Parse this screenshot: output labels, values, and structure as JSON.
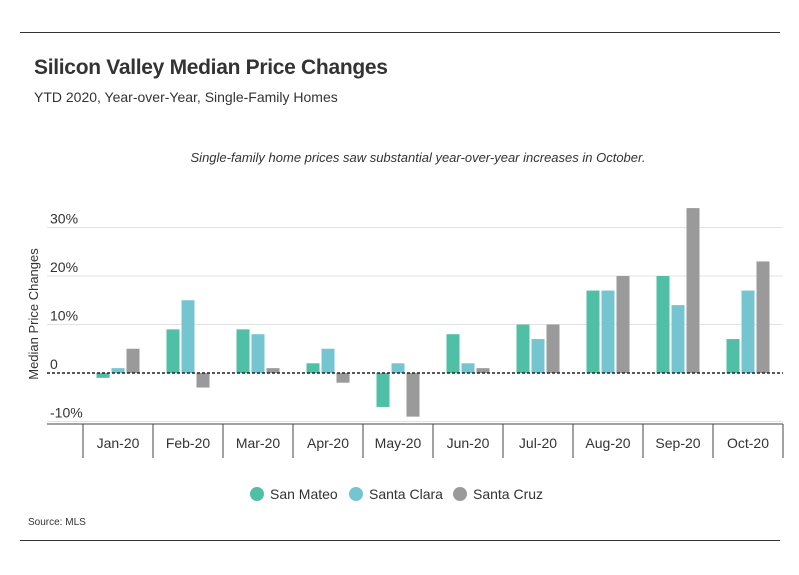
{
  "header": {
    "title": "Silicon Valley Median Price Changes",
    "subtitle": "YTD 2020, Year-over-Year, Single-Family Homes"
  },
  "footer": {
    "source": "Source:  MLS"
  },
  "chart_data": {
    "type": "bar",
    "annotation": "Single-family home prices saw substantial year-over-year increases in October.",
    "ylabel": "Median Price Changes",
    "xlabel": "",
    "ylim": [
      -10,
      34
    ],
    "y_ticks": [
      {
        "value": 30,
        "label": "30%"
      },
      {
        "value": 20,
        "label": "20%"
      },
      {
        "value": 10,
        "label": "10%"
      },
      {
        "value": 0,
        "label": "0"
      },
      {
        "value": -10,
        "label": "-10%"
      }
    ],
    "grid": true,
    "legend": "bottom-center",
    "categories": [
      "Jan-20",
      "Feb-20",
      "Mar-20",
      "Apr-20",
      "May-20",
      "Jun-20",
      "Jul-20",
      "Aug-20",
      "Sep-20",
      "Oct-20"
    ],
    "series": [
      {
        "name": "San Mateo",
        "color": "#4fbfa5",
        "values": [
          -1,
          9,
          9,
          2,
          -7,
          8,
          10,
          17,
          20,
          7
        ]
      },
      {
        "name": "Santa Clara",
        "color": "#74c5d0",
        "values": [
          1,
          15,
          8,
          5,
          2,
          2,
          7,
          17,
          14,
          17
        ]
      },
      {
        "name": "Santa Cruz",
        "color": "#9a9a9a",
        "values": [
          5,
          -3,
          1,
          -2,
          -9,
          1,
          10,
          20,
          34,
          23
        ]
      }
    ]
  }
}
